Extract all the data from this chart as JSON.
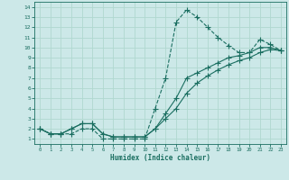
{
  "bg_color": "#cce8e8",
  "grid_color": "#b0d8d0",
  "line_color": "#1a6e60",
  "xlabel": "Humidex (Indice chaleur)",
  "xlim": [
    -0.5,
    23.5
  ],
  "ylim": [
    0.5,
    14.5
  ],
  "xticks": [
    0,
    1,
    2,
    3,
    4,
    5,
    6,
    7,
    8,
    9,
    10,
    11,
    12,
    13,
    14,
    15,
    16,
    17,
    18,
    19,
    20,
    21,
    22,
    23
  ],
  "yticks": [
    1,
    2,
    3,
    4,
    5,
    6,
    7,
    8,
    9,
    10,
    11,
    12,
    13,
    14
  ],
  "line1_x": [
    0,
    1,
    2,
    3,
    4,
    5,
    6,
    7,
    8,
    9,
    10,
    11,
    12,
    13,
    14,
    15,
    16,
    17,
    18,
    19,
    20,
    21,
    22,
    23
  ],
  "line1_y": [
    2,
    1.5,
    1.5,
    1.5,
    2,
    2,
    1,
    1,
    1,
    1,
    1,
    4,
    7,
    12.5,
    13.7,
    13,
    12,
    11,
    10.2,
    9.5,
    9.5,
    10.8,
    10.3,
    9.7
  ],
  "line2_x": [
    0,
    1,
    2,
    3,
    4,
    5,
    6,
    7,
    8,
    9,
    10,
    11,
    12,
    13,
    14,
    15,
    16,
    17,
    18,
    19,
    20,
    21,
    22,
    23
  ],
  "line2_y": [
    2,
    1.5,
    1.5,
    2,
    2.5,
    2.5,
    1.5,
    1.2,
    1.2,
    1.2,
    1.2,
    2,
    3.5,
    5,
    7,
    7.5,
    8,
    8.5,
    9,
    9.2,
    9.5,
    10,
    10,
    9.7
  ],
  "line3_x": [
    0,
    1,
    2,
    3,
    4,
    5,
    6,
    7,
    8,
    9,
    10,
    11,
    12,
    13,
    14,
    15,
    16,
    17,
    18,
    19,
    20,
    21,
    22,
    23
  ],
  "line3_y": [
    2,
    1.5,
    1.5,
    2,
    2.5,
    2.5,
    1.5,
    1.2,
    1.2,
    1.2,
    1.2,
    2,
    3,
    4,
    5.5,
    6.5,
    7.2,
    7.8,
    8.3,
    8.7,
    9,
    9.5,
    9.8,
    9.7
  ],
  "line1_style": "--",
  "line2_style": "-",
  "line3_style": "-"
}
